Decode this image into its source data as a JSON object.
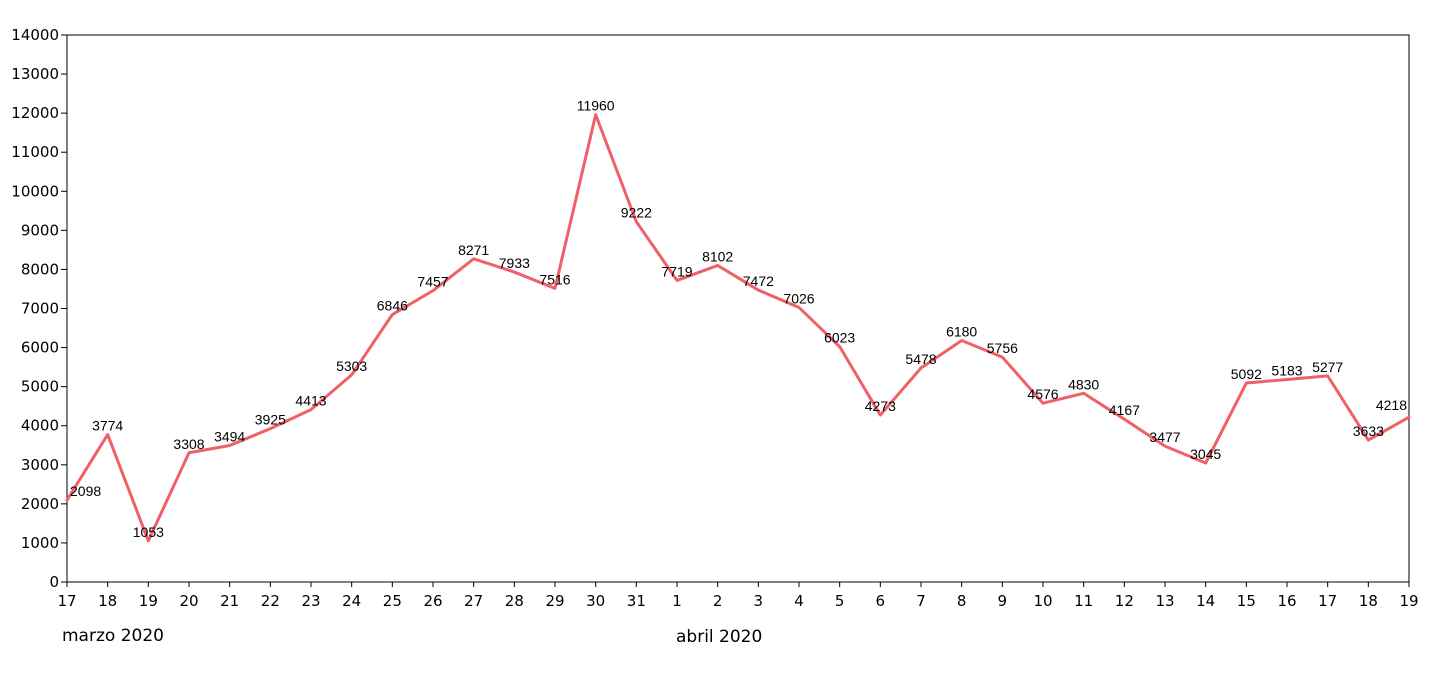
{
  "chart_data": {
    "type": "line",
    "title": "",
    "xlabel": "",
    "ylabel": "",
    "ylim": [
      0,
      14000
    ],
    "y_ticks": [
      0,
      1000,
      2000,
      3000,
      4000,
      5000,
      6000,
      7000,
      8000,
      9000,
      10000,
      11000,
      12000,
      13000,
      14000
    ],
    "grid": false,
    "legend": "none",
    "line_color": "#f06068",
    "categories": [
      "17",
      "18",
      "19",
      "20",
      "21",
      "22",
      "23",
      "24",
      "25",
      "26",
      "27",
      "28",
      "29",
      "30",
      "31",
      "1",
      "2",
      "3",
      "4",
      "5",
      "6",
      "7",
      "8",
      "9",
      "10",
      "11",
      "12",
      "13",
      "14",
      "15",
      "16",
      "17",
      "18",
      "19"
    ],
    "values": [
      2098,
      3774,
      1053,
      3308,
      3494,
      3925,
      4413,
      5303,
      6846,
      7457,
      8271,
      7933,
      7516,
      11960,
      9222,
      7719,
      8102,
      7472,
      7026,
      6023,
      4273,
      5478,
      6180,
      5756,
      4576,
      4830,
      4167,
      3477,
      3045,
      5092,
      5183,
      5277,
      3633,
      4218
    ],
    "group_labels": [
      "marzo 2020",
      "abril 2020"
    ]
  }
}
